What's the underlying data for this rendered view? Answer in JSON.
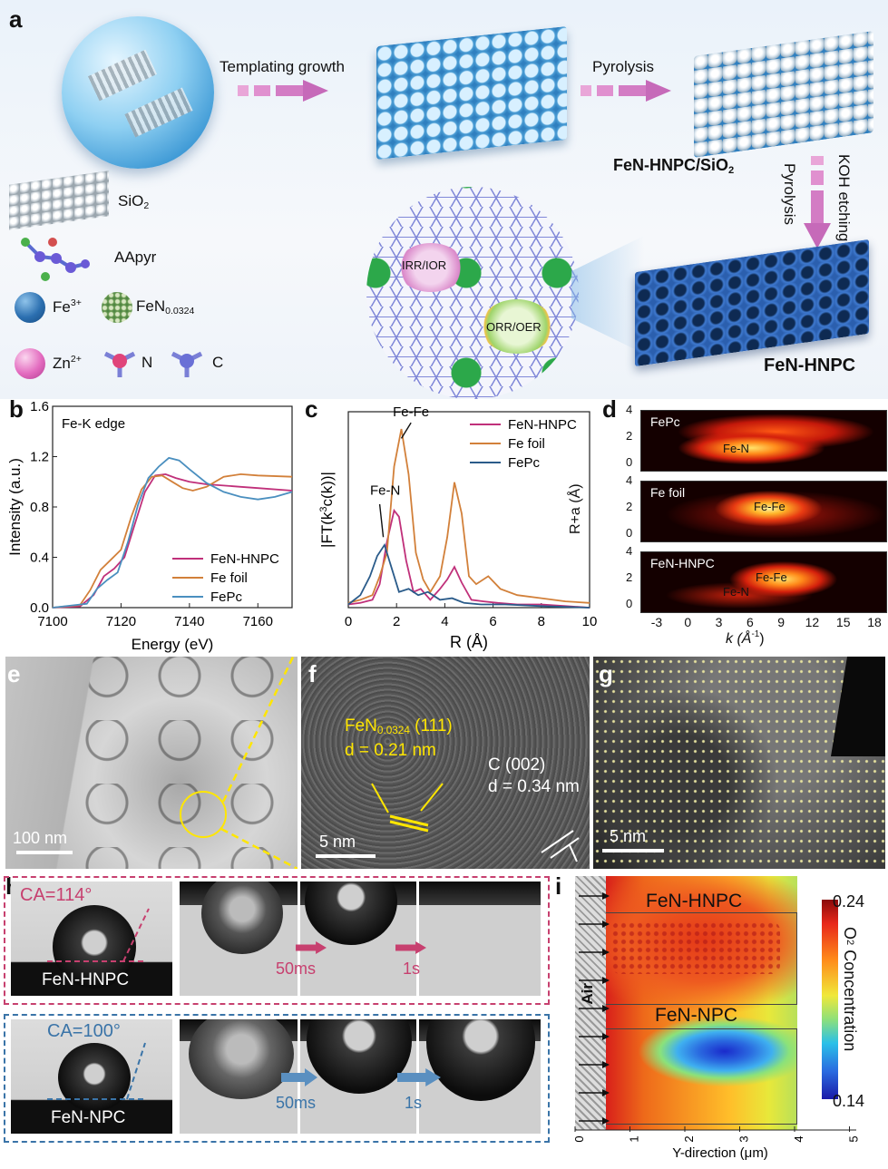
{
  "panels": {
    "a": {
      "label": "a",
      "arrow1": "Templating growth",
      "arrow2": "Pyrolysis",
      "product1": "FeN-HNPC/SiO",
      "product1_sub": "2",
      "arrow3_line1": "KOH etching",
      "arrow3_line2": "Pyrolysis",
      "product2": "FeN-HNPC",
      "bubble1": "IRR/IOR",
      "bubble2": "ORR/OER",
      "legend": {
        "sio2": "SiO",
        "sio2_sub": "2",
        "aapyr": "AApyr",
        "fe": "Fe",
        "fe_sup": "3+",
        "fen": "FeN",
        "fen_sub": "0.0324",
        "zn": "Zn",
        "zn_sup": "2+",
        "n": "N",
        "c": "C"
      }
    },
    "b": {
      "label": "b",
      "title": "Fe-K edge",
      "xlabel": "Energy (eV)",
      "ylabel": "Intensity (a.u.)",
      "xticks": [
        "7100",
        "7120",
        "7140",
        "7160"
      ],
      "yticks": [
        "0.0",
        "0.4",
        "0.8",
        "1.2",
        "1.6"
      ],
      "legend": [
        "FeN-HNPC",
        "Fe foil",
        "FePc"
      ]
    },
    "c": {
      "label": "c",
      "xlabel": "R (Å)",
      "ylabel": "|FT(k",
      "ylabel_sup": "3",
      "ylabel_end": "c(k))|",
      "xticks": [
        "0",
        "2",
        "4",
        "6",
        "8",
        "10"
      ],
      "legend": [
        "FeN-HNPC",
        "Fe foil",
        "FePc"
      ],
      "ann_fefe": "Fe-Fe",
      "ann_fen": "Fe-N"
    },
    "d": {
      "label": "d",
      "ylabel": "R+a (Å)",
      "xlabel": "k (Å",
      "xlabel_sup": "-1",
      "xlabel_end": ")",
      "xticks": [
        "-3",
        "0",
        "3",
        "6",
        "9",
        "12",
        "15",
        "18"
      ],
      "yticks": [
        "4",
        "2",
        "0"
      ],
      "maps": [
        {
          "name": "FePc",
          "ann": [
            "Fe-N"
          ]
        },
        {
          "name": "Fe foil",
          "ann": [
            "Fe-Fe"
          ]
        },
        {
          "name": "FeN-HNPC",
          "ann": [
            "Fe-Fe",
            "Fe-N"
          ]
        }
      ]
    },
    "e": {
      "label": "e",
      "scale": "100 nm"
    },
    "f": {
      "label": "f",
      "scale": "5 nm",
      "fen_line1": "FeN",
      "fen_sub": "0.0324",
      "fen_line1_end": " (111)",
      "fen_line2": "d = 0.21 nm",
      "c_line1": "C (002)",
      "c_line2": "d = 0.34 nm"
    },
    "g": {
      "label": "g",
      "scale": "5 nm"
    },
    "h": {
      "label": "h",
      "ca1": "CA=114°",
      "sample1": "FeN-HNPC",
      "t1a": "50ms",
      "t1b": "1s",
      "ca2": "CA=100°",
      "sample2": "FeN-NPC",
      "t2a": "50ms",
      "t2b": "1s"
    },
    "i": {
      "label": "i",
      "top": "FeN-HNPC",
      "bottom": "FeN-NPC",
      "air": "Air",
      "xlabel": "Y-direction (μm)",
      "xticks": [
        "0",
        "1",
        "2",
        "3",
        "4",
        "5"
      ],
      "cbar_max": "0.24",
      "cbar_min": "0.14",
      "cbar_label": "O",
      "cbar_label_sub": "2",
      "cbar_label_end": " Concentration"
    }
  },
  "chart_data": [
    {
      "type": "line",
      "panel": "b",
      "title": "Fe-K edge",
      "xlabel": "Energy (eV)",
      "ylabel": "Intensity (a.u.)",
      "xlim": [
        7100,
        7170
      ],
      "ylim": [
        0.0,
        1.6
      ],
      "series": [
        {
          "name": "FeN-HNPC",
          "color": "#c0307a",
          "x": [
            7100,
            7108,
            7112,
            7115,
            7118,
            7121,
            7124,
            7127,
            7130,
            7133,
            7136,
            7140,
            7145,
            7150,
            7155,
            7160,
            7170
          ],
          "y": [
            0.0,
            0.01,
            0.1,
            0.25,
            0.31,
            0.4,
            0.66,
            0.92,
            1.05,
            1.06,
            1.03,
            1.0,
            0.98,
            0.97,
            0.96,
            0.95,
            0.93
          ]
        },
        {
          "name": "Fe foil",
          "color": "#d2803a",
          "x": [
            7100,
            7108,
            7111,
            7114,
            7117,
            7120,
            7123,
            7126,
            7129,
            7132,
            7135,
            7138,
            7141,
            7145,
            7150,
            7155,
            7160,
            7170
          ],
          "y": [
            0.0,
            0.02,
            0.14,
            0.3,
            0.38,
            0.46,
            0.72,
            0.94,
            1.04,
            1.05,
            1.0,
            0.95,
            0.93,
            0.96,
            1.04,
            1.06,
            1.05,
            1.04
          ]
        },
        {
          "name": "FePc",
          "color": "#4a8fbf",
          "x": [
            7100,
            7110,
            7113,
            7116,
            7119,
            7122,
            7125,
            7128,
            7131,
            7134,
            7137,
            7140,
            7145,
            7150,
            7155,
            7160,
            7165,
            7170
          ],
          "y": [
            0.0,
            0.03,
            0.15,
            0.22,
            0.28,
            0.52,
            0.82,
            1.03,
            1.12,
            1.19,
            1.17,
            1.1,
            0.99,
            0.92,
            0.88,
            0.86,
            0.88,
            0.92
          ]
        }
      ]
    },
    {
      "type": "line",
      "panel": "c",
      "xlabel": "R (Å)",
      "ylabel": "|FT(k3c(k))|",
      "xlim": [
        0,
        10
      ],
      "series": [
        {
          "name": "FeN-HNPC",
          "color": "#c0307a",
          "x": [
            0,
            0.5,
            1.0,
            1.3,
            1.6,
            1.9,
            2.1,
            2.4,
            2.7,
            3.0,
            3.4,
            3.8,
            4.1,
            4.4,
            4.7,
            5.1,
            5.6,
            6.2,
            7,
            8,
            9,
            10
          ],
          "y": [
            0.02,
            0.03,
            0.05,
            0.15,
            0.42,
            0.62,
            0.58,
            0.3,
            0.1,
            0.12,
            0.05,
            0.12,
            0.18,
            0.26,
            0.16,
            0.05,
            0.04,
            0.03,
            0.02,
            0.02,
            0.01,
            0.0
          ]
        },
        {
          "name": "Fe foil",
          "color": "#d2803a",
          "x": [
            0,
            0.5,
            1.0,
            1.3,
            1.6,
            1.9,
            2.2,
            2.5,
            2.8,
            3.1,
            3.4,
            3.8,
            4.1,
            4.4,
            4.7,
            5.0,
            5.3,
            5.8,
            6.3,
            7,
            8,
            9,
            10
          ],
          "y": [
            0.03,
            0.05,
            0.08,
            0.2,
            0.35,
            0.9,
            1.14,
            0.85,
            0.35,
            0.18,
            0.1,
            0.2,
            0.45,
            0.8,
            0.6,
            0.2,
            0.15,
            0.2,
            0.12,
            0.08,
            0.06,
            0.04,
            0.03
          ]
        },
        {
          "name": "FePc",
          "color": "#2a5b8a",
          "x": [
            0,
            0.5,
            0.9,
            1.2,
            1.5,
            1.8,
            2.1,
            2.5,
            2.9,
            3.3,
            3.8,
            4.3,
            4.8,
            5.5,
            6.5,
            8,
            10
          ],
          "y": [
            0.02,
            0.08,
            0.2,
            0.33,
            0.4,
            0.25,
            0.1,
            0.12,
            0.08,
            0.1,
            0.05,
            0.06,
            0.03,
            0.02,
            0.02,
            0.01,
            0.0
          ]
        }
      ]
    },
    {
      "type": "heatmap",
      "panel": "i",
      "xlabel": "Y-direction (μm)",
      "xlim": [
        0,
        5
      ],
      "colorbar_range": [
        0.14,
        0.24
      ],
      "colorbar_label": "O2 Concentration"
    }
  ]
}
